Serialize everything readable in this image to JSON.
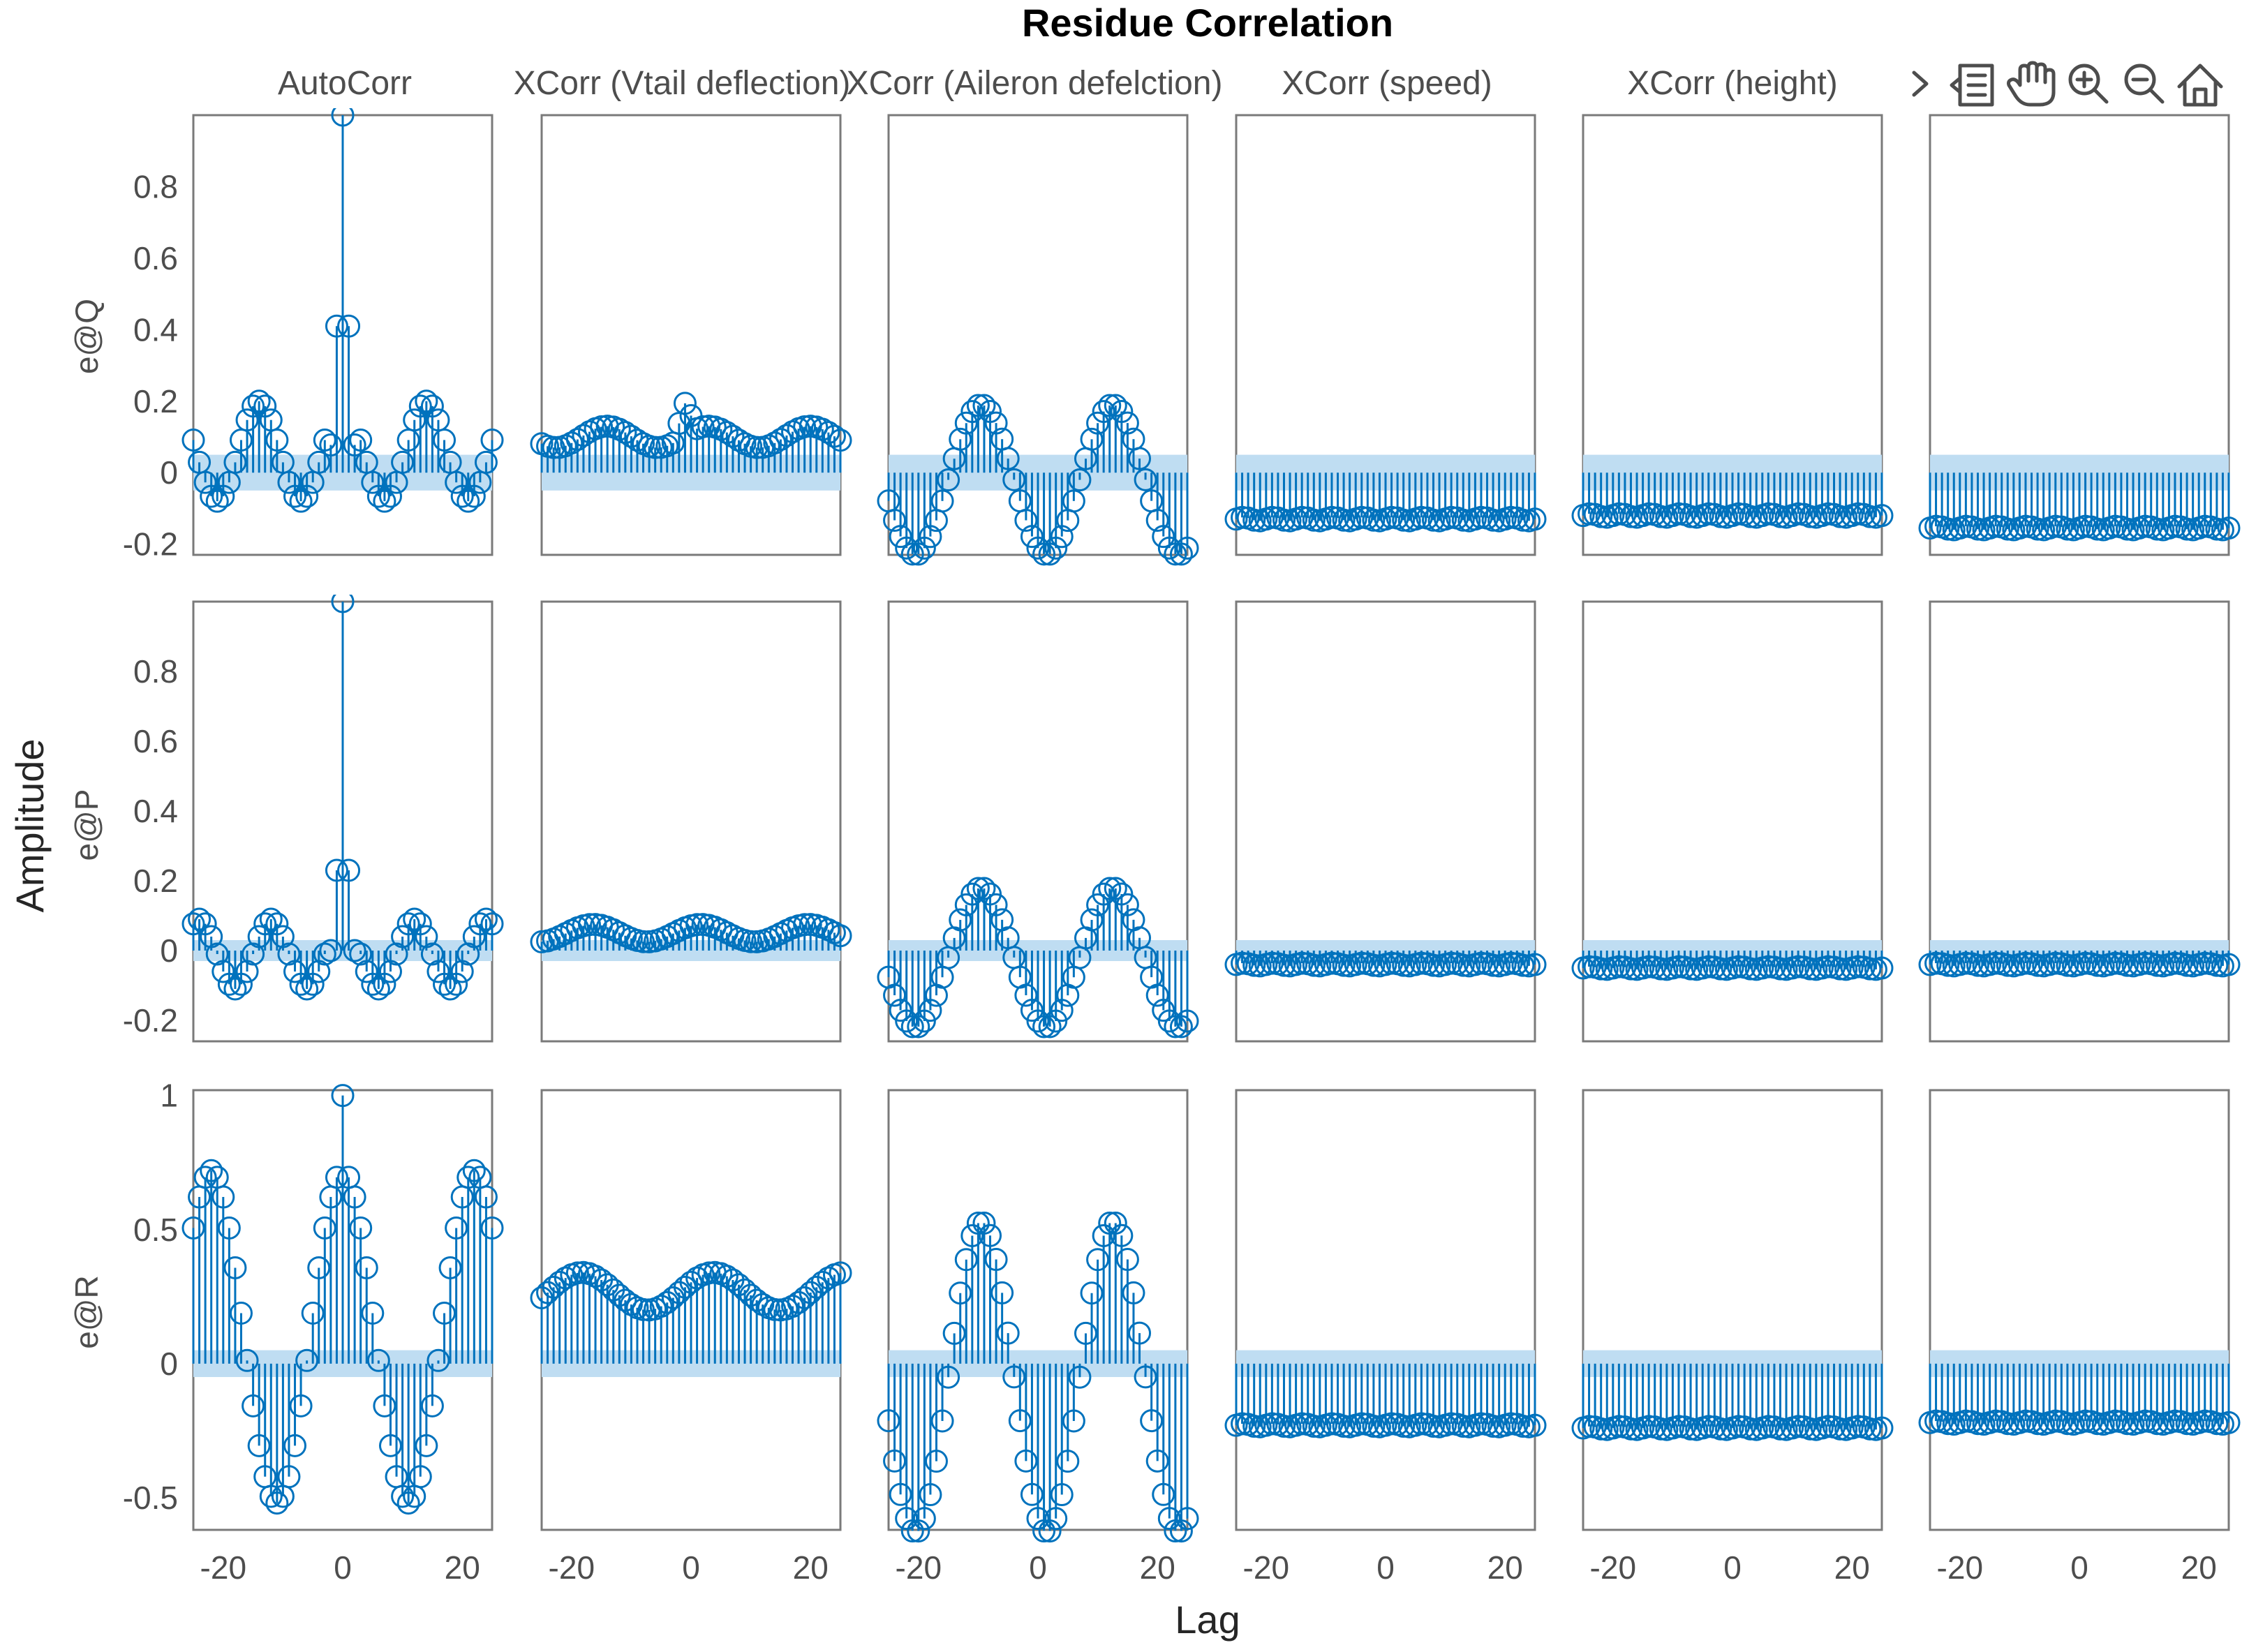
{
  "colors": {
    "series": "#0072BD",
    "confidence_band": "#BFDDF2",
    "axes": "#7a7a7a",
    "text": "#4d4d4d"
  },
  "toolbar": {
    "icons": [
      "expand-arrow-icon",
      "data-tips-icon",
      "pan-hand-icon",
      "zoom-in-icon",
      "zoom-out-icon",
      "home-icon"
    ]
  },
  "chart_data": {
    "type": "stem",
    "title": "Residue Correlation",
    "xlabel": "Lag",
    "ylabel": "Amplitude",
    "column_titles": [
      "AutoCorr",
      "XCorr (Vtail deflection)",
      "XCorr (Aileron defelction)",
      "XCorr (speed)",
      "XCorr (height)",
      ""
    ],
    "row_labels": [
      "e@Q",
      "e@P",
      "e@R"
    ],
    "xlim": [
      -25,
      25
    ],
    "xticks": [
      -20,
      0,
      20
    ],
    "xtick_labels": [
      "-20",
      "0",
      "20"
    ],
    "lags": [
      -25,
      25
    ],
    "rows": [
      {
        "ylim": [
          -0.23,
          1.0
        ],
        "yticks": [
          -0.2,
          0,
          0.2,
          0.4,
          0.6,
          0.8
        ],
        "ytick_labels": [
          "-0.2",
          "0",
          "0.2",
          "0.4",
          "0.6",
          "0.8"
        ],
        "band": 0.05,
        "series": [
          {
            "name": "AutoCorr e@Q",
            "kind": "auto",
            "peak": 1.0,
            "side_peak": 0.41,
            "amp": 0.14,
            "period": 14,
            "offset": 0.06,
            "phase": 0
          },
          {
            "name": "XCorr (Vtail deflection) e@Q",
            "kind": "osc",
            "offset": 0.1,
            "amp": 0.03,
            "period": 17,
            "phase": 0.5,
            "bump_lag": -1,
            "bump": 0.09
          },
          {
            "name": "XCorr (Aileron defelction) e@Q",
            "kind": "osc",
            "offset": -0.02,
            "amp": 0.21,
            "period": 22,
            "phase": -2.0
          },
          {
            "name": "XCorr (speed) e@Q",
            "kind": "flat",
            "offset": -0.13,
            "amp": 0.005,
            "period": 5,
            "phase": 0
          },
          {
            "name": "XCorr (height) e@Q",
            "kind": "flat",
            "offset": -0.12,
            "amp": 0.005,
            "period": 5,
            "phase": 0
          },
          {
            "name": "e@Q e@Q",
            "kind": "flat",
            "offset": -0.155,
            "amp": 0.005,
            "period": 5,
            "phase": 0
          }
        ]
      },
      {
        "ylim": [
          -0.26,
          1.0
        ],
        "yticks": [
          -0.2,
          0,
          0.2,
          0.4,
          0.6,
          0.8
        ],
        "ytick_labels": [
          "-0.2",
          "0",
          "0.2",
          "0.4",
          "0.6",
          "0.8"
        ],
        "band": 0.03,
        "series": [
          {
            "name": "AutoCorr e@P",
            "kind": "auto",
            "peak": 1.0,
            "side_peak": 0.23,
            "amp": 0.1,
            "period": 12,
            "offset": -0.01,
            "phase": 0
          },
          {
            "name": "XCorr (Vtail deflection) e@P",
            "kind": "osc",
            "offset": 0.05,
            "amp": 0.025,
            "period": 18,
            "phase": 1.0
          },
          {
            "name": "XCorr (Aileron defelction) e@P",
            "kind": "osc",
            "offset": -0.02,
            "amp": 0.2,
            "period": 22,
            "phase": -2.0
          },
          {
            "name": "XCorr (speed) e@P",
            "kind": "flat",
            "offset": -0.04,
            "amp": 0.004,
            "period": 5,
            "phase": 0
          },
          {
            "name": "XCorr (height) e@P",
            "kind": "flat",
            "offset": -0.05,
            "amp": 0.004,
            "period": 5,
            "phase": 0
          },
          {
            "name": "e@P e@P",
            "kind": "flat",
            "offset": -0.04,
            "amp": 0.004,
            "period": 5,
            "phase": 0
          }
        ]
      },
      {
        "ylim": [
          -0.62,
          1.02
        ],
        "yticks": [
          -0.5,
          0,
          0.5,
          1
        ],
        "ytick_labels": [
          "-0.5",
          "0",
          "0.5",
          "1"
        ],
        "band": 0.05,
        "series": [
          {
            "name": "AutoCorr e@R",
            "kind": "cos",
            "offset": 0.1,
            "amp": 0.62,
            "period": 22,
            "phase": 0,
            "peak": 1.0
          },
          {
            "name": "XCorr (Vtail deflection) e@R",
            "kind": "osc",
            "offset": 0.27,
            "amp": 0.07,
            "period": 22,
            "phase": 0.5
          },
          {
            "name": "XCorr (Aileron defelction) e@R",
            "kind": "osc",
            "offset": -0.05,
            "amp": 0.58,
            "period": 22,
            "phase": -2.0
          },
          {
            "name": "XCorr (speed) e@R",
            "kind": "flat",
            "offset": -0.23,
            "amp": 0.006,
            "period": 5,
            "phase": 0
          },
          {
            "name": "XCorr (height) e@R",
            "kind": "flat",
            "offset": -0.24,
            "amp": 0.006,
            "period": 5,
            "phase": 0
          },
          {
            "name": "e@R e@R",
            "kind": "flat",
            "offset": -0.22,
            "amp": 0.006,
            "period": 5,
            "phase": 0
          }
        ]
      }
    ]
  }
}
